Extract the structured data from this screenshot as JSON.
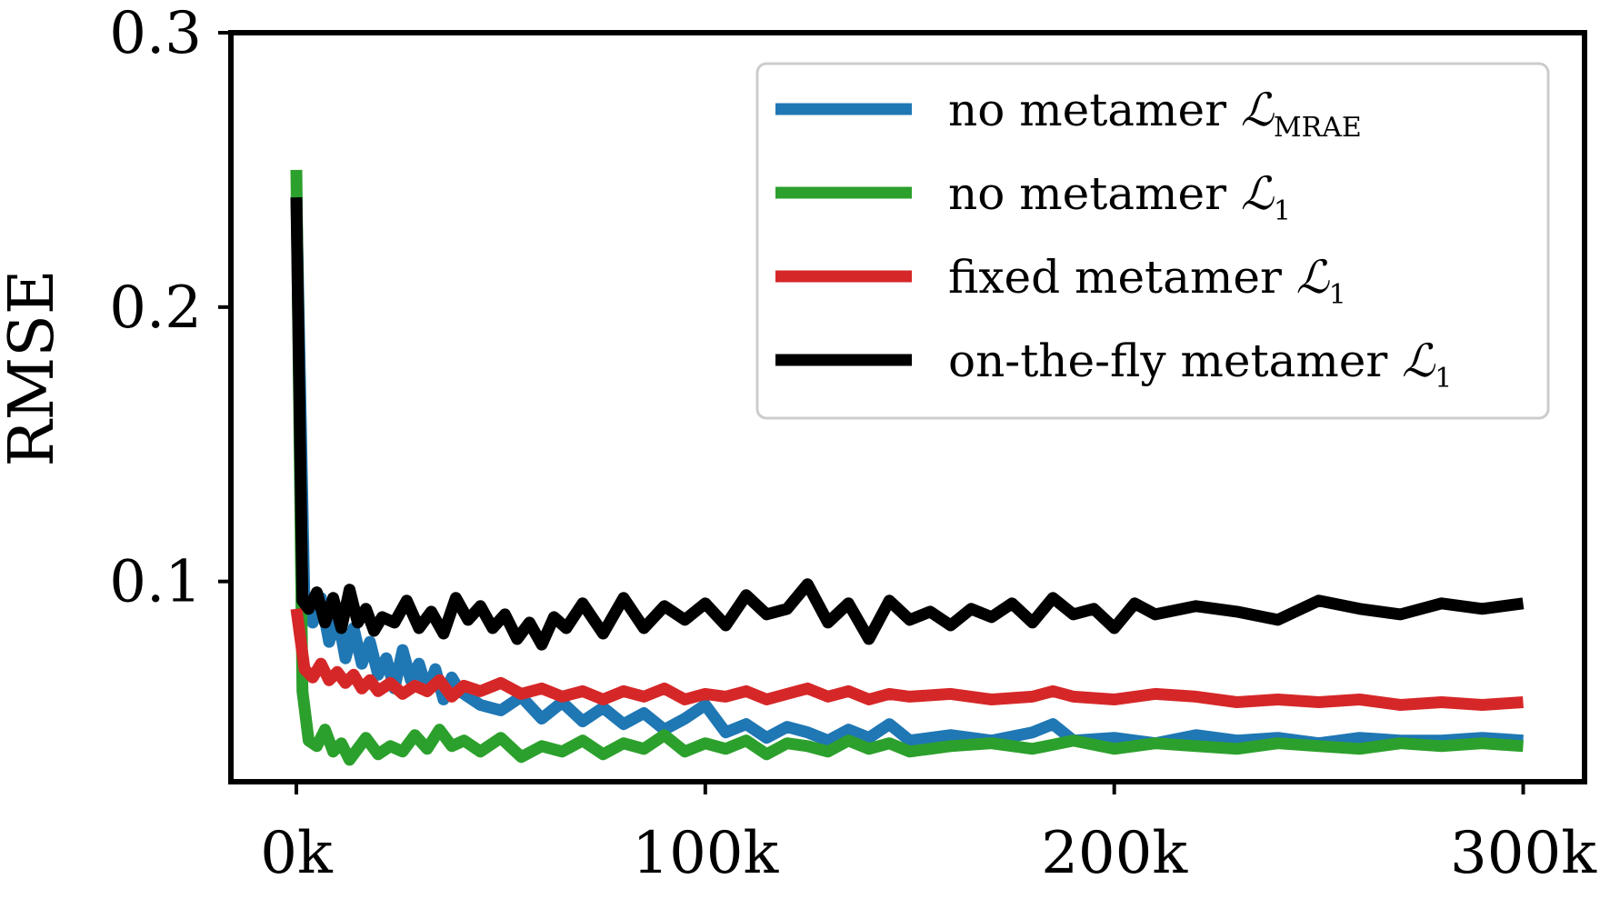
{
  "chart_data": {
    "type": "line",
    "title": "",
    "xlabel": "",
    "ylabel": "RMSE",
    "xlim": [
      -16000,
      315000
    ],
    "ylim": [
      0.027,
      0.3
    ],
    "xticks": [
      0,
      100000,
      200000,
      300000
    ],
    "xtick_labels": [
      "0k",
      "100k",
      "200k",
      "300k"
    ],
    "yticks": [
      0.1,
      0.2,
      0.3
    ],
    "ytick_labels": [
      "0.1",
      "0.2",
      "0.3"
    ],
    "grid": false,
    "legend_position": "top-right",
    "series": [
      {
        "name": "no metamer",
        "loss_symbol": "ℒ",
        "loss_subscript": "MRAE",
        "color": "#1f77b4",
        "x": [
          0,
          2000,
          4000,
          6000,
          8000,
          10000,
          12000,
          14000,
          16000,
          18000,
          20000,
          22000,
          24000,
          26000,
          28000,
          30000,
          32000,
          34000,
          36000,
          38000,
          40000,
          45000,
          50000,
          55000,
          60000,
          65000,
          70000,
          75000,
          80000,
          85000,
          90000,
          95000,
          100000,
          105000,
          110000,
          115000,
          120000,
          125000,
          130000,
          135000,
          140000,
          145000,
          150000,
          160000,
          170000,
          180000,
          185000,
          190000,
          200000,
          210000,
          220000,
          230000,
          240000,
          250000,
          260000,
          270000,
          280000,
          290000,
          300000
        ],
        "values": [
          0.24,
          0.09,
          0.085,
          0.094,
          0.078,
          0.088,
          0.072,
          0.083,
          0.07,
          0.078,
          0.066,
          0.072,
          0.061,
          0.075,
          0.064,
          0.07,
          0.06,
          0.068,
          0.057,
          0.065,
          0.06,
          0.055,
          0.053,
          0.058,
          0.05,
          0.056,
          0.049,
          0.054,
          0.048,
          0.052,
          0.046,
          0.05,
          0.055,
          0.045,
          0.048,
          0.043,
          0.047,
          0.045,
          0.042,
          0.046,
          0.043,
          0.048,
          0.042,
          0.044,
          0.042,
          0.045,
          0.048,
          0.042,
          0.043,
          0.041,
          0.044,
          0.042,
          0.043,
          0.041,
          0.043,
          0.042,
          0.042,
          0.043,
          0.042
        ]
      },
      {
        "name": "no metamer",
        "loss_symbol": "ℒ",
        "loss_subscript": "1",
        "color": "#2ca02c",
        "x": [
          0,
          1500,
          3000,
          5000,
          7000,
          9000,
          11000,
          13000,
          15000,
          17000,
          20000,
          23000,
          26000,
          29000,
          32000,
          35000,
          38000,
          41000,
          45000,
          50000,
          55000,
          60000,
          65000,
          70000,
          75000,
          80000,
          85000,
          90000,
          95000,
          100000,
          105000,
          110000,
          115000,
          120000,
          125000,
          130000,
          135000,
          140000,
          145000,
          150000,
          160000,
          170000,
          180000,
          190000,
          200000,
          210000,
          220000,
          230000,
          240000,
          250000,
          260000,
          270000,
          280000,
          290000,
          300000
        ],
        "values": [
          0.25,
          0.06,
          0.042,
          0.04,
          0.046,
          0.038,
          0.041,
          0.035,
          0.039,
          0.043,
          0.037,
          0.04,
          0.038,
          0.044,
          0.039,
          0.046,
          0.04,
          0.042,
          0.038,
          0.043,
          0.036,
          0.04,
          0.038,
          0.042,
          0.037,
          0.041,
          0.039,
          0.044,
          0.038,
          0.041,
          0.039,
          0.042,
          0.037,
          0.041,
          0.04,
          0.038,
          0.042,
          0.039,
          0.041,
          0.038,
          0.04,
          0.041,
          0.039,
          0.042,
          0.039,
          0.041,
          0.04,
          0.039,
          0.041,
          0.04,
          0.039,
          0.041,
          0.04,
          0.041,
          0.04
        ]
      },
      {
        "name": "fixed metamer",
        "loss_symbol": "ℒ",
        "loss_subscript": "1",
        "color": "#d62728",
        "x": [
          0,
          2000,
          4000,
          6000,
          8000,
          10000,
          12000,
          14000,
          16000,
          18000,
          20000,
          23000,
          26000,
          29000,
          32000,
          35000,
          38000,
          41000,
          45000,
          50000,
          55000,
          60000,
          65000,
          70000,
          75000,
          80000,
          85000,
          90000,
          95000,
          100000,
          105000,
          110000,
          115000,
          120000,
          125000,
          130000,
          135000,
          140000,
          145000,
          150000,
          160000,
          170000,
          180000,
          185000,
          190000,
          200000,
          210000,
          220000,
          230000,
          240000,
          250000,
          260000,
          270000,
          280000,
          290000,
          300000
        ],
        "values": [
          0.09,
          0.068,
          0.065,
          0.07,
          0.064,
          0.067,
          0.063,
          0.066,
          0.061,
          0.064,
          0.06,
          0.063,
          0.059,
          0.062,
          0.06,
          0.064,
          0.058,
          0.062,
          0.06,
          0.063,
          0.059,
          0.061,
          0.058,
          0.06,
          0.057,
          0.06,
          0.058,
          0.061,
          0.057,
          0.059,
          0.058,
          0.06,
          0.057,
          0.059,
          0.061,
          0.058,
          0.06,
          0.057,
          0.059,
          0.058,
          0.059,
          0.057,
          0.058,
          0.06,
          0.058,
          0.057,
          0.059,
          0.058,
          0.056,
          0.057,
          0.056,
          0.057,
          0.055,
          0.056,
          0.055,
          0.056
        ]
      },
      {
        "name": "on-the-fly metamer",
        "loss_symbol": "ℒ",
        "loss_subscript": "1",
        "color": "#000000",
        "x": [
          0,
          1500,
          3000,
          5000,
          7000,
          9000,
          11000,
          13000,
          15000,
          17000,
          19000,
          21000,
          24000,
          27000,
          30000,
          33000,
          36000,
          39000,
          42000,
          45000,
          48000,
          51000,
          54000,
          57000,
          60000,
          63000,
          66000,
          70000,
          75000,
          80000,
          85000,
          90000,
          95000,
          100000,
          105000,
          110000,
          115000,
          120000,
          125000,
          130000,
          135000,
          140000,
          145000,
          150000,
          155000,
          160000,
          165000,
          170000,
          175000,
          180000,
          185000,
          190000,
          195000,
          200000,
          205000,
          210000,
          220000,
          230000,
          240000,
          250000,
          260000,
          270000,
          280000,
          290000,
          300000
        ],
        "values": [
          0.24,
          0.093,
          0.09,
          0.096,
          0.085,
          0.094,
          0.083,
          0.097,
          0.085,
          0.09,
          0.082,
          0.087,
          0.085,
          0.093,
          0.083,
          0.089,
          0.081,
          0.094,
          0.086,
          0.091,
          0.083,
          0.088,
          0.079,
          0.085,
          0.077,
          0.087,
          0.083,
          0.092,
          0.081,
          0.094,
          0.083,
          0.091,
          0.086,
          0.092,
          0.084,
          0.095,
          0.088,
          0.09,
          0.099,
          0.085,
          0.092,
          0.079,
          0.093,
          0.086,
          0.089,
          0.084,
          0.09,
          0.087,
          0.092,
          0.085,
          0.094,
          0.088,
          0.09,
          0.083,
          0.092,
          0.088,
          0.091,
          0.089,
          0.086,
          0.093,
          0.09,
          0.088,
          0.092,
          0.09,
          0.092
        ]
      }
    ]
  }
}
